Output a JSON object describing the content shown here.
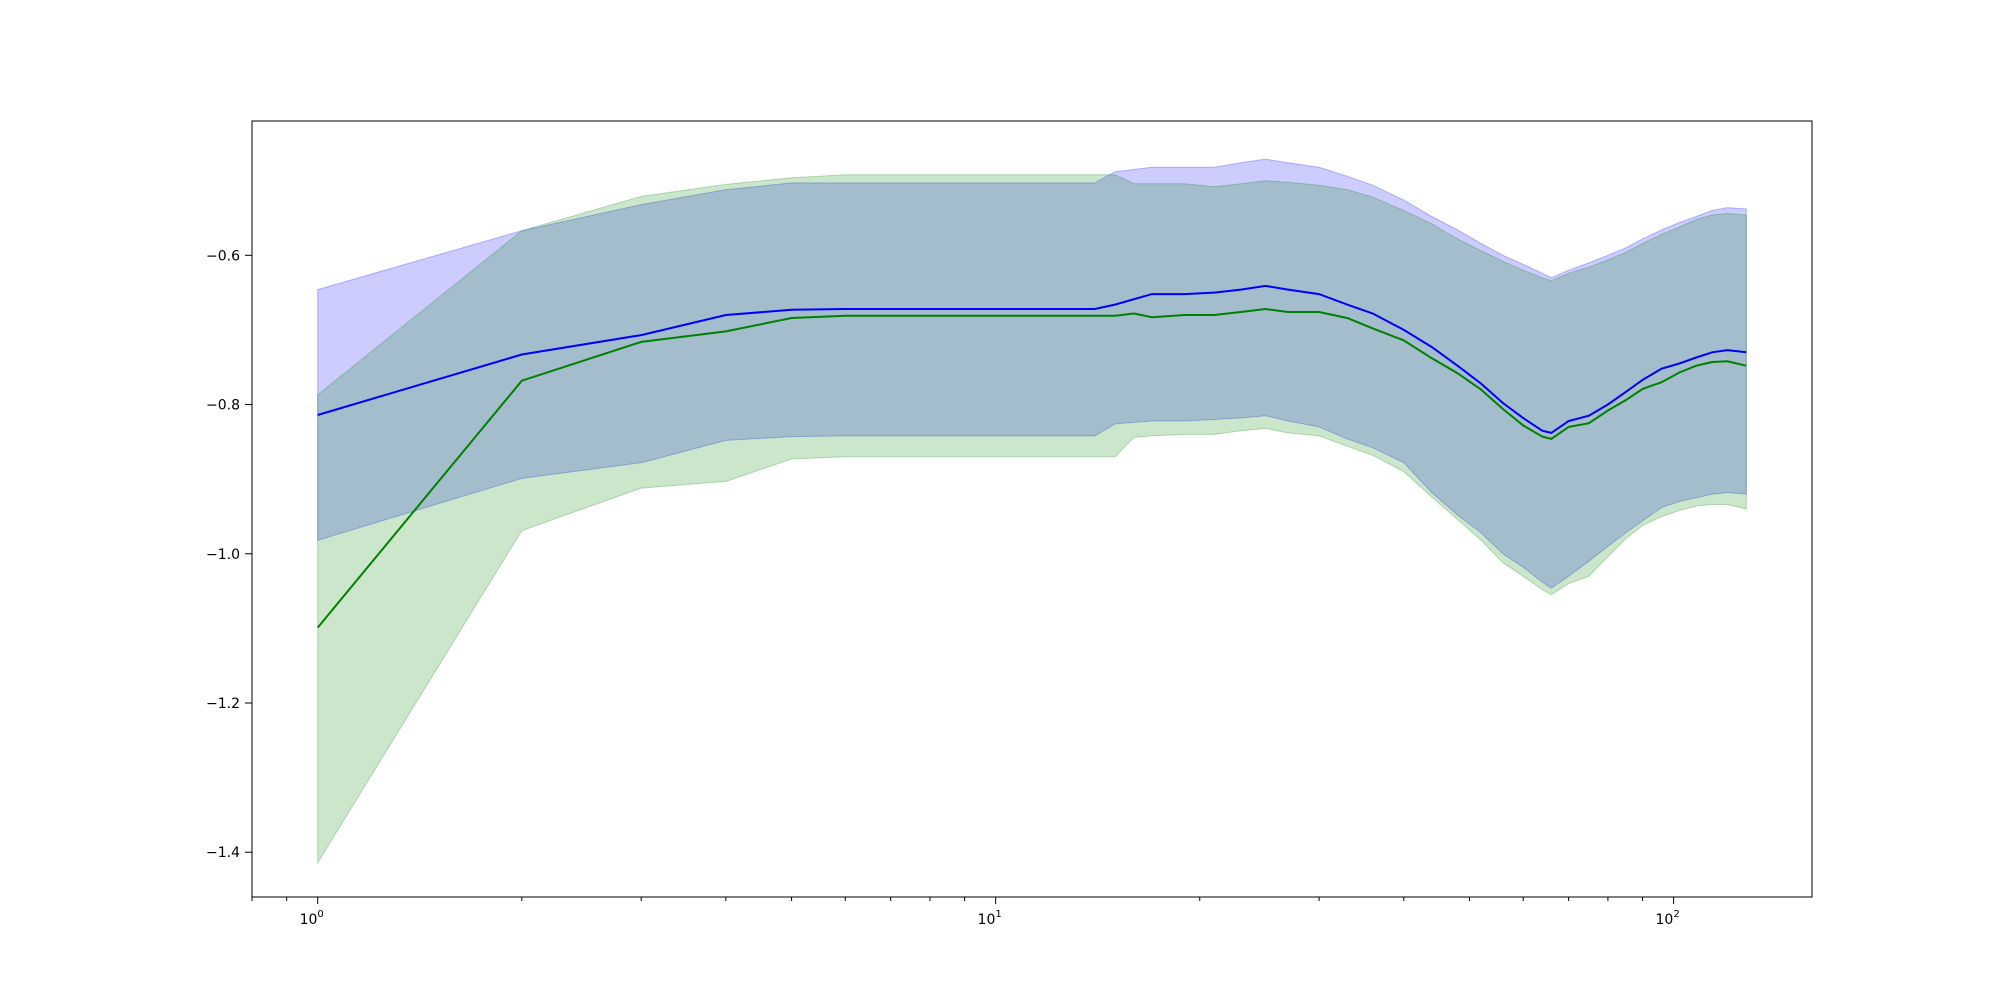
{
  "chart_data": {
    "type": "line",
    "title": "",
    "xlabel": "",
    "ylabel": "",
    "xscale": "log",
    "xlim": [
      0.8,
      160
    ],
    "ylim": [
      -1.46,
      -0.42
    ],
    "grid": false,
    "legend": "none",
    "x_ticks": [
      {
        "value": 1,
        "base": "10",
        "exp": "0"
      },
      {
        "value": 10,
        "base": "10",
        "exp": "1"
      },
      {
        "value": 100,
        "base": "10",
        "exp": "2"
      }
    ],
    "y_ticks": [
      {
        "value": -0.6,
        "label": "−0.6"
      },
      {
        "value": -0.8,
        "label": "−0.8"
      },
      {
        "value": -1.0,
        "label": "−1.0"
      },
      {
        "value": -1.2,
        "label": "−1.2"
      },
      {
        "value": -1.4,
        "label": "−1.4"
      }
    ],
    "series": [
      {
        "color": "#0000ff",
        "fill": "#0000ff",
        "fill_opacity": 0.2,
        "points": [
          [
            1,
            -0.814,
            -0.646,
            -0.982
          ],
          [
            2,
            -0.733,
            -0.567,
            -0.899
          ],
          [
            3,
            -0.707,
            -0.532,
            -0.878
          ],
          [
            4,
            -0.68,
            -0.512,
            -0.848
          ],
          [
            5,
            -0.673,
            -0.503,
            -0.843
          ],
          [
            6,
            -0.672,
            -0.503,
            -0.842
          ],
          [
            8,
            -0.672,
            -0.503,
            -0.842
          ],
          [
            10,
            -0.672,
            -0.503,
            -0.842
          ],
          [
            12,
            -0.672,
            -0.503,
            -0.842
          ],
          [
            14,
            -0.672,
            -0.503,
            -0.842
          ],
          [
            15,
            -0.666,
            -0.488,
            -0.826
          ],
          [
            17,
            -0.652,
            -0.482,
            -0.822
          ],
          [
            19,
            -0.652,
            -0.482,
            -0.822
          ],
          [
            21,
            -0.65,
            -0.482,
            -0.82
          ],
          [
            23,
            -0.646,
            -0.476,
            -0.818
          ],
          [
            25,
            -0.641,
            -0.471,
            -0.815
          ],
          [
            27,
            -0.646,
            -0.476,
            -0.822
          ],
          [
            30,
            -0.652,
            -0.482,
            -0.83
          ],
          [
            33,
            -0.666,
            -0.494,
            -0.846
          ],
          [
            36,
            -0.678,
            -0.506,
            -0.858
          ],
          [
            40,
            -0.7,
            -0.526,
            -0.878
          ],
          [
            44,
            -0.723,
            -0.548,
            -0.918
          ],
          [
            48,
            -0.748,
            -0.566,
            -0.948
          ],
          [
            52,
            -0.772,
            -0.584,
            -0.972
          ],
          [
            56,
            -0.798,
            -0.6,
            -1.0
          ],
          [
            60,
            -0.818,
            -0.612,
            -1.018
          ],
          [
            64,
            -0.835,
            -0.624,
            -1.038
          ],
          [
            66,
            -0.838,
            -0.63,
            -1.046
          ],
          [
            70,
            -0.822,
            -0.62,
            -1.03
          ],
          [
            75,
            -0.815,
            -0.61,
            -1.01
          ],
          [
            80,
            -0.8,
            -0.6,
            -0.99
          ],
          [
            85,
            -0.783,
            -0.59,
            -0.972
          ],
          [
            90,
            -0.767,
            -0.578,
            -0.956
          ],
          [
            96,
            -0.752,
            -0.566,
            -0.938
          ],
          [
            102,
            -0.745,
            -0.556,
            -0.93
          ],
          [
            108,
            -0.737,
            -0.548,
            -0.925
          ],
          [
            114,
            -0.73,
            -0.54,
            -0.92
          ],
          [
            120,
            -0.727,
            -0.536,
            -0.918
          ],
          [
            128,
            -0.73,
            -0.538,
            -0.92
          ]
        ]
      },
      {
        "color": "#008000",
        "fill": "#008000",
        "fill_opacity": 0.2,
        "points": [
          [
            1,
            -1.099,
            -0.787,
            -1.414
          ],
          [
            2,
            -0.768,
            -0.567,
            -0.969
          ],
          [
            3,
            -0.716,
            -0.521,
            -0.912
          ],
          [
            4,
            -0.702,
            -0.505,
            -0.903
          ],
          [
            5,
            -0.684,
            -0.496,
            -0.873
          ],
          [
            6,
            -0.681,
            -0.492,
            -0.87
          ],
          [
            8,
            -0.681,
            -0.492,
            -0.87
          ],
          [
            10,
            -0.681,
            -0.492,
            -0.87
          ],
          [
            12,
            -0.681,
            -0.492,
            -0.87
          ],
          [
            14,
            -0.681,
            -0.492,
            -0.87
          ],
          [
            15,
            -0.681,
            -0.492,
            -0.87
          ],
          [
            16,
            -0.678,
            -0.504,
            -0.844
          ],
          [
            17,
            -0.683,
            -0.504,
            -0.842
          ],
          [
            19,
            -0.68,
            -0.504,
            -0.84
          ],
          [
            21,
            -0.68,
            -0.508,
            -0.84
          ],
          [
            23,
            -0.676,
            -0.504,
            -0.835
          ],
          [
            25,
            -0.672,
            -0.5,
            -0.832
          ],
          [
            27,
            -0.676,
            -0.502,
            -0.838
          ],
          [
            30,
            -0.676,
            -0.506,
            -0.842
          ],
          [
            33,
            -0.684,
            -0.512,
            -0.856
          ],
          [
            36,
            -0.698,
            -0.522,
            -0.868
          ],
          [
            40,
            -0.714,
            -0.54,
            -0.89
          ],
          [
            44,
            -0.738,
            -0.558,
            -0.924
          ],
          [
            48,
            -0.758,
            -0.578,
            -0.954
          ],
          [
            52,
            -0.78,
            -0.594,
            -0.982
          ],
          [
            56,
            -0.806,
            -0.608,
            -1.012
          ],
          [
            60,
            -0.828,
            -0.62,
            -1.03
          ],
          [
            64,
            -0.843,
            -0.63,
            -1.048
          ],
          [
            66,
            -0.846,
            -0.634,
            -1.055
          ],
          [
            70,
            -0.83,
            -0.624,
            -1.04
          ],
          [
            75,
            -0.825,
            -0.616,
            -1.03
          ],
          [
            80,
            -0.808,
            -0.606,
            -1.004
          ],
          [
            85,
            -0.794,
            -0.596,
            -0.98
          ],
          [
            90,
            -0.779,
            -0.584,
            -0.962
          ],
          [
            96,
            -0.77,
            -0.572,
            -0.95
          ],
          [
            102,
            -0.757,
            -0.562,
            -0.942
          ],
          [
            108,
            -0.748,
            -0.552,
            -0.936
          ],
          [
            114,
            -0.743,
            -0.546,
            -0.934
          ],
          [
            120,
            -0.742,
            -0.544,
            -0.934
          ],
          [
            128,
            -0.748,
            -0.546,
            -0.94
          ]
        ]
      }
    ]
  }
}
